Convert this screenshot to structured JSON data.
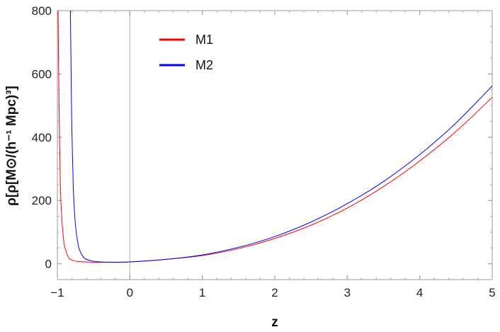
{
  "chart_data": {
    "type": "line",
    "xlabel": "z",
    "ylabel": "ρ[ρ[M⊙/(h⁻¹ Mpc)³]",
    "xlim": [
      -1,
      5
    ],
    "ylim": [
      -50,
      800
    ],
    "xticks": [
      -1,
      0,
      1,
      2,
      3,
      4,
      5
    ],
    "yticks": [
      0,
      200,
      400,
      600,
      800
    ],
    "x_tick_labels": [
      "−1",
      "0",
      "1",
      "2",
      "3",
      "4",
      "5"
    ],
    "y_tick_labels": [
      "0",
      "200",
      "400",
      "600",
      "800"
    ],
    "grid": false,
    "legend_position": "top-center",
    "series": [
      {
        "name": "M1",
        "color": "#ff0000",
        "x": [
          -0.99,
          -0.98,
          -0.96,
          -0.94,
          -0.92,
          -0.9,
          -0.85,
          -0.8,
          -0.7,
          -0.5,
          -0.3,
          0,
          0.5,
          1,
          1.5,
          2,
          2.5,
          3,
          3.5,
          4,
          4.5,
          5
        ],
        "y": [
          800,
          560,
          260,
          150,
          90,
          55,
          22,
          12,
          7,
          5,
          5,
          6,
          14,
          26,
          48,
          80,
          122,
          176,
          244,
          325,
          418,
          526
        ]
      },
      {
        "name": "M2",
        "color": "#0000ff",
        "x": [
          -0.82,
          -0.81,
          -0.8,
          -0.78,
          -0.76,
          -0.74,
          -0.72,
          -0.7,
          -0.65,
          -0.6,
          -0.5,
          -0.4,
          -0.3,
          0,
          0.5,
          1,
          1.5,
          2,
          2.5,
          3,
          3.5,
          4,
          4.5,
          5
        ],
        "y": [
          800,
          600,
          430,
          240,
          150,
          100,
          70,
          48,
          24,
          14,
          8,
          6,
          5,
          6,
          14,
          28,
          52,
          86,
          132,
          190,
          260,
          345,
          445,
          562
        ]
      }
    ]
  }
}
